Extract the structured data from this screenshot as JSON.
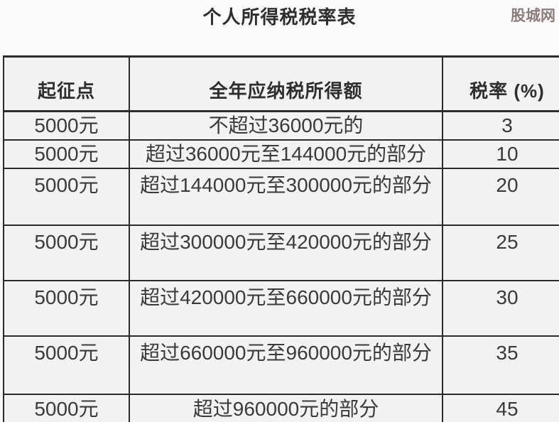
{
  "page": {
    "title": "个人所得税税率表",
    "watermark": "股城网"
  },
  "table": {
    "headers": [
      "起征点",
      "全年应纳税所得额",
      "税率 (%)"
    ],
    "rows": [
      {
        "threshold": "5000元",
        "bracket": "不超过36000元的",
        "rate": "3"
      },
      {
        "threshold": "5000元",
        "bracket": "超过36000元至144000元的部分",
        "rate": "10"
      },
      {
        "threshold": "5000元",
        "bracket": "超过144000元至300000元的部分",
        "rate": "20"
      },
      {
        "threshold": "5000元",
        "bracket": "超过300000元至420000元的部分",
        "rate": "25"
      },
      {
        "threshold": "5000元",
        "bracket": "超过420000元至660000元的部分",
        "rate": "30"
      },
      {
        "threshold": "5000元",
        "bracket": "超过660000元至960000元的部分",
        "rate": "35"
      },
      {
        "threshold": "5000元",
        "bracket": "超过960000元的部分",
        "rate": "45"
      }
    ]
  },
  "colors": {
    "border": "#2b2b2b",
    "text": "#3a3a3a",
    "header_text": "#2e2e2e",
    "watermark": "#8d7a7a",
    "page_bg": "#fbfbfb",
    "cell_bg": "#f2f2f2"
  }
}
